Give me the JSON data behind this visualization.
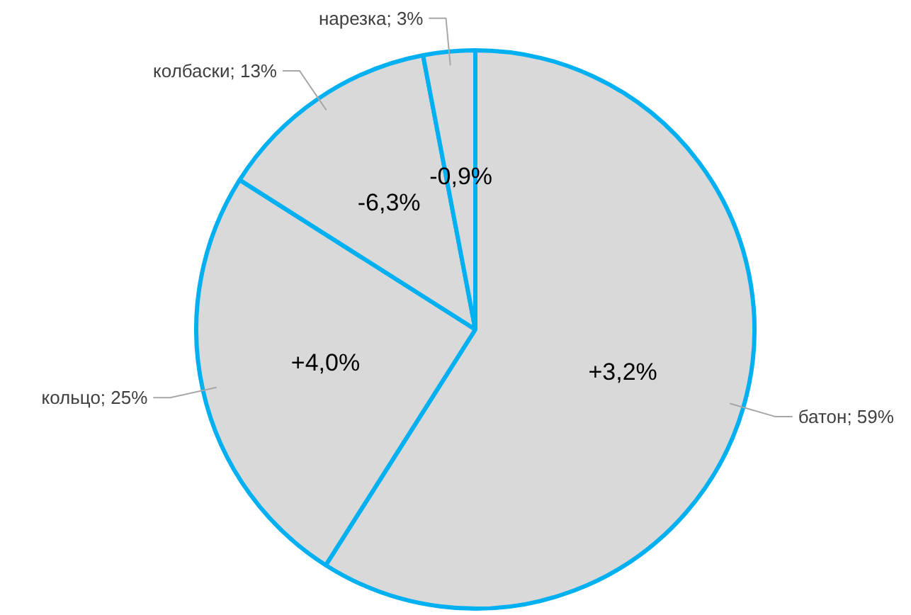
{
  "chart_data": {
    "type": "pie",
    "categories": [
      "батон",
      "кольцо",
      "колбаски",
      "нарезка"
    ],
    "values": [
      59,
      25,
      13,
      3
    ],
    "colors": [
      "#d9d9d9",
      "#d9d9d9",
      "#d9d9d9",
      "#d9d9d9"
    ],
    "value_labels": [
      "59%",
      "25%",
      "13%",
      "3%"
    ],
    "annotations": [
      "+3,2%",
      "+4,0%",
      "-6,3%",
      "-0,9%"
    ]
  }
}
